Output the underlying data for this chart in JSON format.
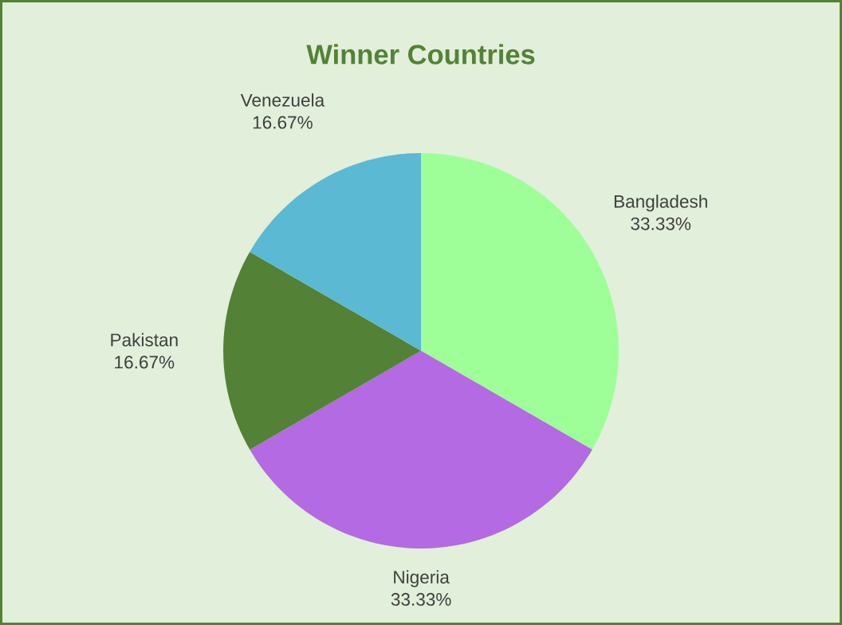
{
  "chart_data": {
    "type": "pie",
    "title": "Winner Countries",
    "categories": [
      "Bangladesh",
      "Nigeria",
      "Pakistan",
      "Venezuela"
    ],
    "values": [
      33.33,
      33.33,
      16.67,
      16.67
    ],
    "colors": [
      "#9eff99",
      "#b36ae2",
      "#538135",
      "#5bb9d3"
    ],
    "value_labels": [
      "33.33%",
      "33.33%",
      "16.67%",
      "16.67%"
    ]
  }
}
